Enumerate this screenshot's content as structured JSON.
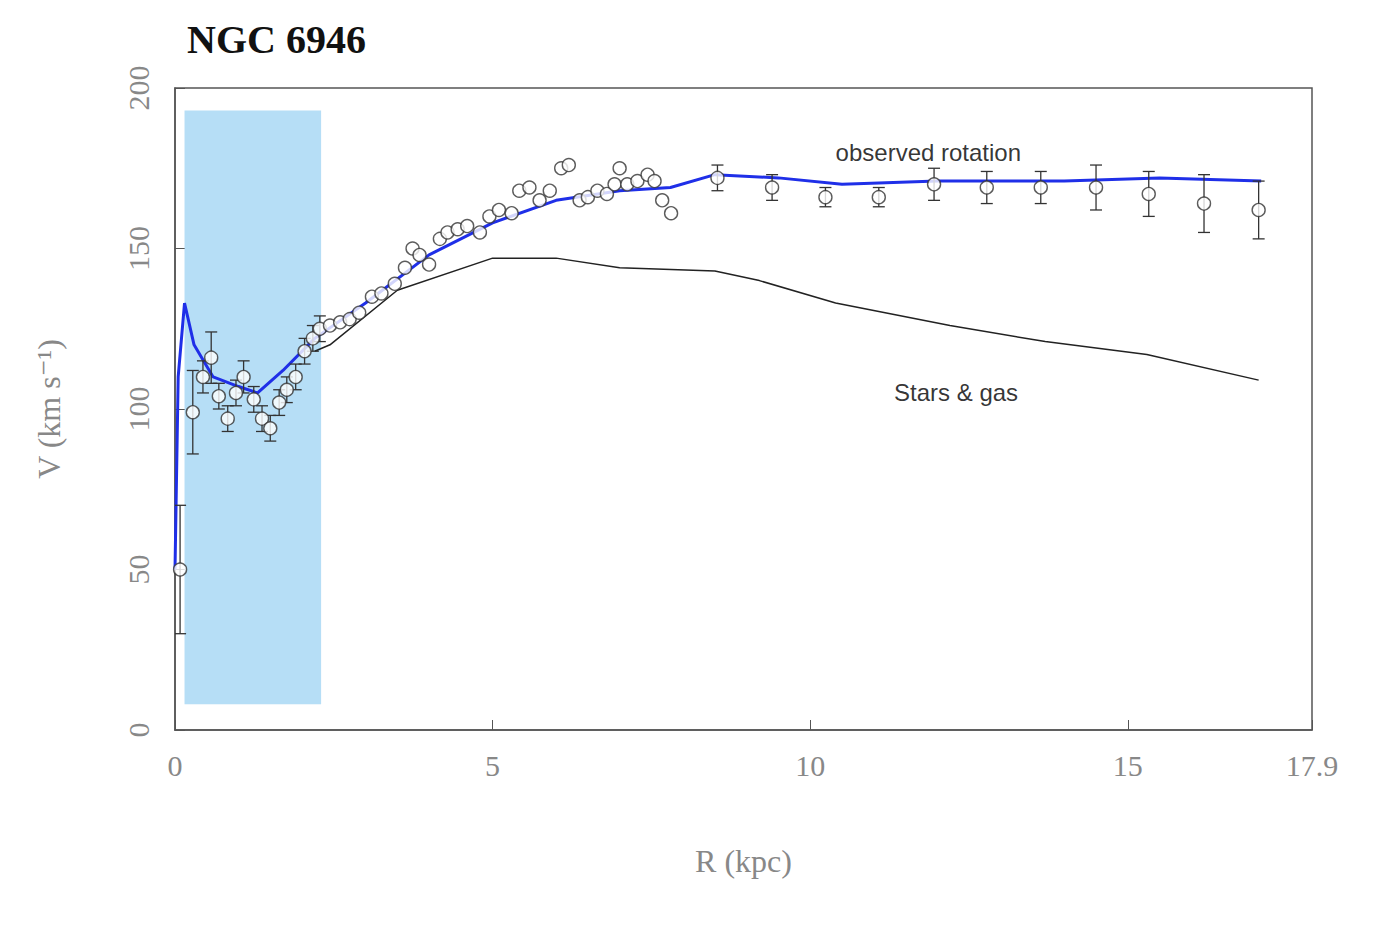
{
  "chart_data": {
    "type": "scatter",
    "title": "NGC 6946",
    "x_label": "R (kpc)",
    "y_label": "V (km s⁻¹)",
    "xlim": [
      0,
      17.9
    ],
    "xticks": [
      0,
      5,
      10,
      15
    ],
    "ylim": [
      0,
      200
    ],
    "yticks": [
      0,
      50,
      100,
      150,
      200
    ],
    "grid": false,
    "shaded_region": {
      "x": [
        0.15,
        2.3
      ],
      "y": [
        8,
        193
      ],
      "color": "#a9d8f5"
    },
    "series": [
      {
        "name": "Stars & gas",
        "type": "line",
        "color": "#222222",
        "line_style": "solid",
        "x": [
          2.2,
          2.44,
          3.5,
          5.0,
          6.0,
          7.0,
          8.5,
          9.2,
          10.4,
          12.2,
          13.7,
          15.3,
          17.06
        ],
        "values": [
          118,
          120,
          137,
          147,
          147,
          144,
          143,
          140,
          133,
          126,
          121,
          117,
          109
        ]
      },
      {
        "type": "line",
        "color": "#1f2fe8",
        "line_style": "solid",
        "x": [
          0,
          0.05,
          0.15,
          0.3,
          0.6,
          1.0,
          1.3,
          1.7,
          2.2,
          3.0,
          4.0,
          5.0,
          6.0,
          7.0,
          7.8,
          8.5,
          9.5,
          10.5,
          12.0,
          14.0,
          15.5,
          17.1
        ],
        "values": [
          50,
          110,
          133,
          120,
          110,
          107,
          105,
          112,
          122,
          133,
          148,
          158,
          165,
          168,
          169,
          173,
          172,
          170,
          171,
          171,
          172,
          171
        ]
      },
      {
        "name": "observed rotation",
        "type": "scatter",
        "marker": "circle",
        "color": "#333333",
        "x": [
          0.08,
          0.28,
          0.44,
          0.57,
          0.69,
          0.83,
          0.96,
          1.08,
          1.24,
          1.37,
          1.5,
          1.64,
          1.76,
          1.9,
          2.04,
          2.17,
          2.28,
          2.44,
          2.6,
          2.75,
          2.9,
          3.1,
          3.25,
          3.46,
          3.62,
          3.74,
          3.85,
          4.0,
          4.17,
          4.29,
          4.45,
          4.6,
          4.8,
          4.95,
          5.1,
          5.3,
          5.42,
          5.58,
          5.74,
          5.9,
          6.08,
          6.2,
          6.37,
          6.5,
          6.65,
          6.8,
          6.92,
          7.0,
          7.12,
          7.28,
          7.44,
          7.55,
          7.67,
          7.81,
          8.54,
          9.4,
          10.24,
          11.08,
          11.95,
          12.78,
          13.63,
          14.5,
          15.33,
          16.2,
          17.06
        ],
        "values": [
          50,
          99,
          110,
          116,
          104,
          97,
          105,
          110,
          103,
          97,
          94,
          102,
          106,
          110,
          118,
          122,
          125,
          126,
          127,
          128,
          130,
          135,
          136,
          139,
          144,
          150,
          148,
          145,
          153,
          155,
          156,
          157,
          155,
          160,
          162,
          161,
          168,
          169,
          165,
          168,
          175,
          176,
          165,
          166,
          168,
          167,
          170,
          175,
          170,
          171,
          173,
          171,
          165,
          161,
          172,
          169,
          166,
          166,
          170,
          169,
          169,
          169,
          167,
          164,
          162
        ],
        "errors": [
          20,
          13,
          5,
          8,
          4,
          4,
          4,
          5,
          4,
          4,
          4,
          4,
          4,
          4,
          4,
          4,
          4,
          null,
          null,
          null,
          null,
          null,
          null,
          null,
          null,
          null,
          null,
          null,
          null,
          null,
          null,
          null,
          null,
          null,
          null,
          null,
          null,
          null,
          null,
          null,
          null,
          null,
          null,
          null,
          null,
          null,
          null,
          null,
          null,
          null,
          null,
          null,
          null,
          null,
          4,
          4,
          3,
          3,
          5,
          5,
          5,
          7,
          7,
          9,
          9
        ]
      }
    ],
    "annotations": [
      {
        "text": "observed rotation",
        "x": 10.4,
        "y": 180
      },
      {
        "text": "Stars & gas",
        "x": 11.32,
        "y": 105
      }
    ]
  }
}
